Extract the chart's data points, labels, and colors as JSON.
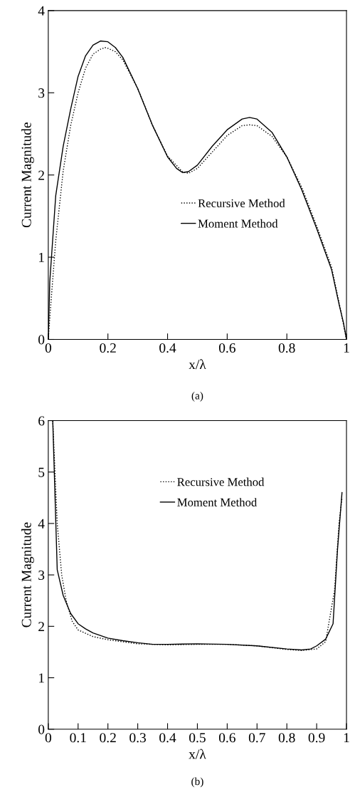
{
  "chart_data": [
    {
      "type": "line",
      "title": "(a)",
      "xlabel": "x/λ",
      "ylabel": "Current Magnitude",
      "xlim": [
        0,
        1
      ],
      "ylim": [
        0,
        4
      ],
      "xticks": [
        0,
        0.2,
        0.4,
        0.6,
        0.8,
        1
      ],
      "yticks": [
        0,
        1,
        2,
        3,
        4
      ],
      "legend": "center",
      "grid": false,
      "series": [
        {
          "name": "Recursive Method",
          "color": "#000000",
          "line_style": "dotted",
          "x": [
            0,
            0.01,
            0.025,
            0.05,
            0.075,
            0.1,
            0.125,
            0.15,
            0.175,
            0.19,
            0.2,
            0.225,
            0.25,
            0.3,
            0.35,
            0.4,
            0.45,
            0.47,
            0.5,
            0.55,
            0.6,
            0.65,
            0.675,
            0.7,
            0.75,
            0.8,
            0.85,
            0.9,
            0.95,
            0.975,
            1.0
          ],
          "values": [
            0,
            0.5,
            1.2,
            2.05,
            2.6,
            3.0,
            3.3,
            3.47,
            3.53,
            3.55,
            3.54,
            3.5,
            3.4,
            3.05,
            2.6,
            2.23,
            2.04,
            2.02,
            2.08,
            2.28,
            2.48,
            2.6,
            2.61,
            2.6,
            2.47,
            2.22,
            1.85,
            1.38,
            0.88,
            0.45,
            0
          ]
        },
        {
          "name": "Moment Method",
          "color": "#000000",
          "line_style": "solid",
          "x": [
            0,
            0.005,
            0.025,
            0.05,
            0.075,
            0.1,
            0.125,
            0.15,
            0.175,
            0.2,
            0.225,
            0.25,
            0.3,
            0.35,
            0.4,
            0.43,
            0.45,
            0.47,
            0.5,
            0.55,
            0.6,
            0.65,
            0.675,
            0.7,
            0.75,
            0.8,
            0.85,
            0.9,
            0.95,
            0.975,
            0.99,
            1.0
          ],
          "values": [
            0,
            0.7,
            1.75,
            2.35,
            2.8,
            3.2,
            3.45,
            3.58,
            3.63,
            3.62,
            3.55,
            3.43,
            3.05,
            2.6,
            2.22,
            2.08,
            2.03,
            2.04,
            2.12,
            2.35,
            2.55,
            2.68,
            2.7,
            2.68,
            2.52,
            2.22,
            1.82,
            1.35,
            0.85,
            0.43,
            0.2,
            0
          ]
        }
      ]
    },
    {
      "type": "line",
      "title": "(b)",
      "xlabel": "x/λ",
      "ylabel": "Current Magnitude",
      "xlim": [
        0,
        1
      ],
      "ylim": [
        0,
        6
      ],
      "xticks": [
        0,
        0.1,
        0.2,
        0.3,
        0.4,
        0.5,
        0.6,
        0.7,
        0.8,
        0.9,
        1
      ],
      "yticks": [
        0,
        1,
        2,
        3,
        4,
        5,
        6
      ],
      "legend": "upper center",
      "grid": false,
      "series": [
        {
          "name": "Recursive Method",
          "color": "#000000",
          "line_style": "dotted",
          "x": [
            0.015,
            0.03,
            0.045,
            0.06,
            0.08,
            0.1,
            0.15,
            0.2,
            0.3,
            0.4,
            0.5,
            0.6,
            0.7,
            0.8,
            0.85,
            0.9,
            0.93,
            0.96,
            0.975,
            0.985
          ],
          "values": [
            6.0,
            4.0,
            3.0,
            2.5,
            2.1,
            1.93,
            1.8,
            1.74,
            1.66,
            1.64,
            1.65,
            1.65,
            1.62,
            1.55,
            1.53,
            1.56,
            1.7,
            2.7,
            4.0,
            4.5
          ]
        },
        {
          "name": "Moment Method",
          "color": "#000000",
          "line_style": "solid",
          "x": [
            0.015,
            0.03,
            0.05,
            0.075,
            0.1,
            0.125,
            0.15,
            0.2,
            0.25,
            0.3,
            0.35,
            0.4,
            0.5,
            0.6,
            0.7,
            0.8,
            0.85,
            0.88,
            0.9,
            0.93,
            0.955,
            0.97,
            0.985
          ],
          "values": [
            6.0,
            3.1,
            2.6,
            2.25,
            2.05,
            1.95,
            1.87,
            1.77,
            1.72,
            1.68,
            1.65,
            1.65,
            1.66,
            1.65,
            1.62,
            1.56,
            1.54,
            1.56,
            1.62,
            1.75,
            2.05,
            3.5,
            4.6
          ]
        }
      ]
    }
  ]
}
